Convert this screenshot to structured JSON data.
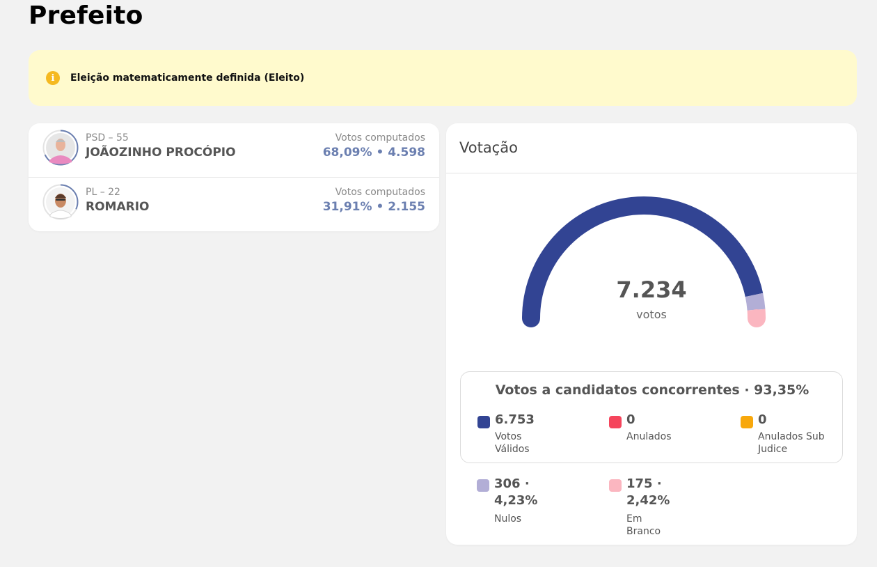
{
  "page": {
    "title": "Prefeito"
  },
  "alert": {
    "icon": "info-icon",
    "text": "Eleição matematicamente definida (Eleito)"
  },
  "candidates": [
    {
      "party": "PSD – 55",
      "name": "JOÃOZINHO PROCÓPIO",
      "votes_label": "Votos computados",
      "votes": "68,09%  •  4.598",
      "share": 0.6809
    },
    {
      "party": "PL – 22",
      "name": "ROMARIO",
      "votes_label": "Votos computados",
      "votes": "31,91%  •  2.155",
      "share": 0.3191
    }
  ],
  "voting": {
    "title": "Votação",
    "total": "7.234",
    "unit": "votos",
    "gauge_shares": {
      "validos": 0.9335,
      "nulos": 0.0423,
      "brancos": 0.0242
    },
    "concorrentes": {
      "title": "Votos a candidatos concorrentes · 93,35%",
      "items": [
        {
          "value": "6.753",
          "label": "Votos Válidos",
          "color": "#324493"
        },
        {
          "value": "0",
          "label": "Anulados",
          "color": "#f5455c"
        },
        {
          "value": "0",
          "label": "Anulados Sub Judice",
          "color": "#f8a80c"
        }
      ]
    },
    "outros": [
      {
        "value": "306 · 4,23%",
        "label": "Nulos",
        "color": "#b2aed6"
      },
      {
        "value": "175 · 2,42%",
        "label": "Em Branco",
        "color": "#fbb6c0"
      }
    ]
  },
  "colors": {
    "gauge_validos": "#324493",
    "gauge_nulos": "#b2aed6",
    "gauge_brancos": "#fbb6c0",
    "ring": "#6b7fb0"
  }
}
